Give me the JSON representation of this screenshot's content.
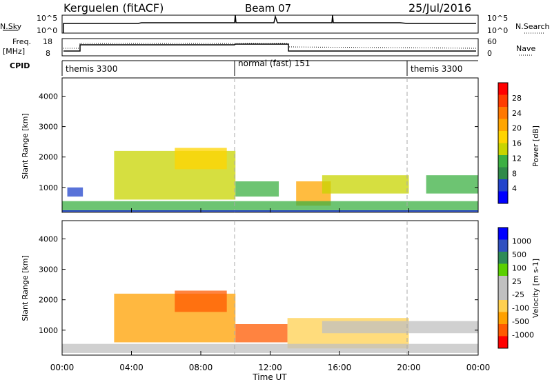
{
  "header": {
    "station": "Kerguelen (fitACF)",
    "beam": "Beam 07",
    "date": "25/Jul/2016"
  },
  "side_labels": {
    "nsky": "N.Sky",
    "nsearch": "N.Search",
    "freq": "Freq.",
    "freq_unit": "[MHz]",
    "nave": "Nave",
    "cpid": "CPID"
  },
  "noise_panel": {
    "left_ticks": [
      "10^5",
      "10^0"
    ],
    "right_ticks": [
      "10^5",
      "10^0"
    ]
  },
  "freq_panel": {
    "left_ticks": [
      "18",
      "8"
    ],
    "right_ticks": [
      "60",
      "0"
    ]
  },
  "cpid_panel": {
    "segments": [
      {
        "label": "themis 3300",
        "start_hour": 0.0,
        "end_hour": 9.9
      },
      {
        "label": "normal (fast) 151",
        "start_hour": 9.9,
        "end_hour": 19.9
      },
      {
        "label": "themis 3300",
        "start_hour": 19.9,
        "end_hour": 24.0
      }
    ]
  },
  "colors": {
    "power_scale": [
      "#0000ff",
      "#2244cc",
      "#2f8a4a",
      "#3cb043",
      "#c8d400",
      "#ffd400",
      "#ffa500",
      "#ff7800",
      "#ff3c00",
      "#ff0000"
    ],
    "velocity_scale": [
      "#ff0000",
      "#ff5a00",
      "#ffa000",
      "#ffd050",
      "#c0c0c0",
      "#c0c0c0",
      "#5ad000",
      "#2e8b57",
      "#3050c0",
      "#0000ff"
    ],
    "ground_scatter": "#b0b0b0"
  },
  "chart_data": [
    {
      "type": "heatmap",
      "ylabel": "Slant Range [km]",
      "xlabel": "",
      "xlim": [
        0,
        24
      ],
      "ylim": [
        180,
        4600
      ],
      "y_ticks": [
        1000,
        2000,
        3000,
        4000
      ],
      "colorbar": {
        "label": "Power [dB]",
        "range": [
          0,
          32
        ],
        "ticks": [
          "4",
          "8",
          "12",
          "16",
          "20",
          "24",
          "28"
        ]
      },
      "description_regions": [
        {
          "hours": [
            0.3,
            1.2
          ],
          "range_km": [
            700,
            1000
          ],
          "value": 6
        },
        {
          "hours": [
            3.0,
            10.0
          ],
          "range_km": [
            600,
            2200
          ],
          "value": 14
        },
        {
          "hours": [
            6.5,
            9.5
          ],
          "range_km": [
            1600,
            2300
          ],
          "value": 16
        },
        {
          "hours": [
            10.0,
            12.5
          ],
          "range_km": [
            700,
            1200
          ],
          "value": 12
        },
        {
          "hours": [
            13.5,
            15.5
          ],
          "range_km": [
            400,
            1200
          ],
          "value": 22
        },
        {
          "hours": [
            15.0,
            20.0
          ],
          "range_km": [
            800,
            1400
          ],
          "value": 14
        },
        {
          "hours": [
            21.0,
            24.0
          ],
          "range_km": [
            800,
            1400
          ],
          "value": 10
        },
        {
          "hours": [
            0.0,
            24.0
          ],
          "range_km": [
            250,
            550
          ],
          "value": 10
        }
      ]
    },
    {
      "type": "heatmap",
      "ylabel": "Slant Range [km]",
      "xlabel": "Time UT",
      "xlim": [
        0,
        24
      ],
      "ylim": [
        180,
        4600
      ],
      "x_ticks": [
        "00:00",
        "04:00",
        "08:00",
        "12:00",
        "16:00",
        "20:00",
        "00:00"
      ],
      "y_ticks": [
        1000,
        2000,
        3000,
        4000
      ],
      "colorbar": {
        "label": "Velocity [m s-1]",
        "ticks": [
          "-1000",
          "-500",
          "-100",
          "-25",
          "25",
          "100",
          "500",
          "1000"
        ]
      },
      "description_regions": [
        {
          "hours": [
            3.0,
            10.0
          ],
          "range_km": [
            600,
            2200
          ],
          "value": -200
        },
        {
          "hours": [
            6.5,
            9.5
          ],
          "range_km": [
            1600,
            2300
          ],
          "value": -500
        },
        {
          "hours": [
            10.0,
            13.0
          ],
          "range_km": [
            600,
            1200
          ],
          "value": -300
        },
        {
          "hours": [
            13.0,
            20.0
          ],
          "range_km": [
            400,
            1400
          ],
          "value": -50
        },
        {
          "hours": [
            15.0,
            24.0
          ],
          "range_km": [
            900,
            1300
          ],
          "value": 0
        },
        {
          "hours": [
            0.0,
            24.0
          ],
          "range_km": [
            250,
            550
          ],
          "value": 0
        }
      ]
    }
  ]
}
